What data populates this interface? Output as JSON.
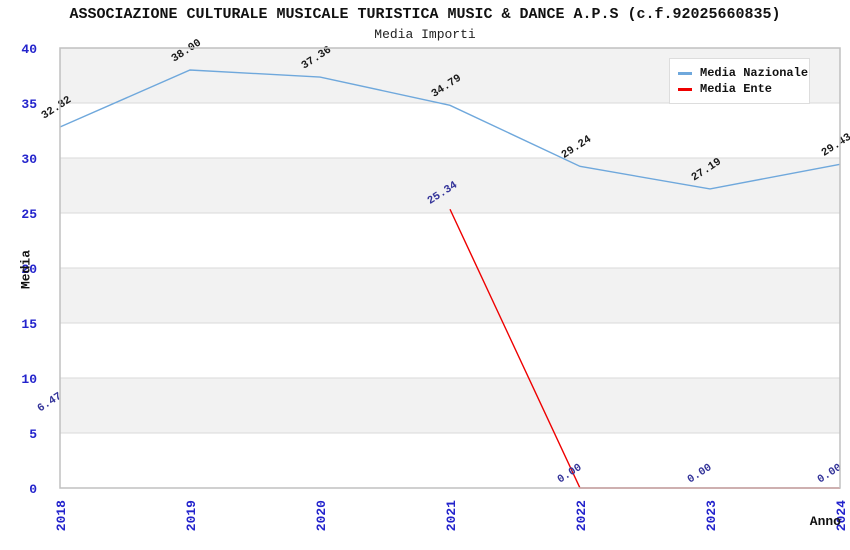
{
  "chart_data": {
    "type": "line",
    "title": "ASSOCIAZIONE CULTURALE MUSICALE TURISTICA MUSIC & DANCE A.P.S (c.f.92025660835)",
    "subtitle": "Media Importi",
    "xlabel": "Anno",
    "ylabel": "Media",
    "ylim": [
      0,
      40
    ],
    "ytick_step": 5,
    "yticks": [
      0,
      5,
      10,
      15,
      20,
      25,
      30,
      35,
      40
    ],
    "categories": [
      "2018",
      "2019",
      "2020",
      "2021",
      "2022",
      "2023",
      "2024"
    ],
    "series": [
      {
        "name": "Media Nazionale",
        "color": "#6fa8dc",
        "label_color": "#1a1a1a",
        "values": [
          32.82,
          38.0,
          37.36,
          34.79,
          29.24,
          27.19,
          29.43
        ]
      },
      {
        "name": "Media Ente",
        "color": "#ee0000",
        "label_color": "#333399",
        "values": [
          6.47,
          null,
          null,
          25.34,
          0.0,
          0.0,
          0.0
        ]
      }
    ],
    "legend_position": "top-right",
    "grid": "horizontal-bands",
    "band_color": "#f2f2f2",
    "band_alt_color": "#ffffff",
    "gridline_color": "#dadada",
    "border_color": "#c0c0c0",
    "tick_label_color": "#2323cc",
    "label_decimals": 2
  }
}
